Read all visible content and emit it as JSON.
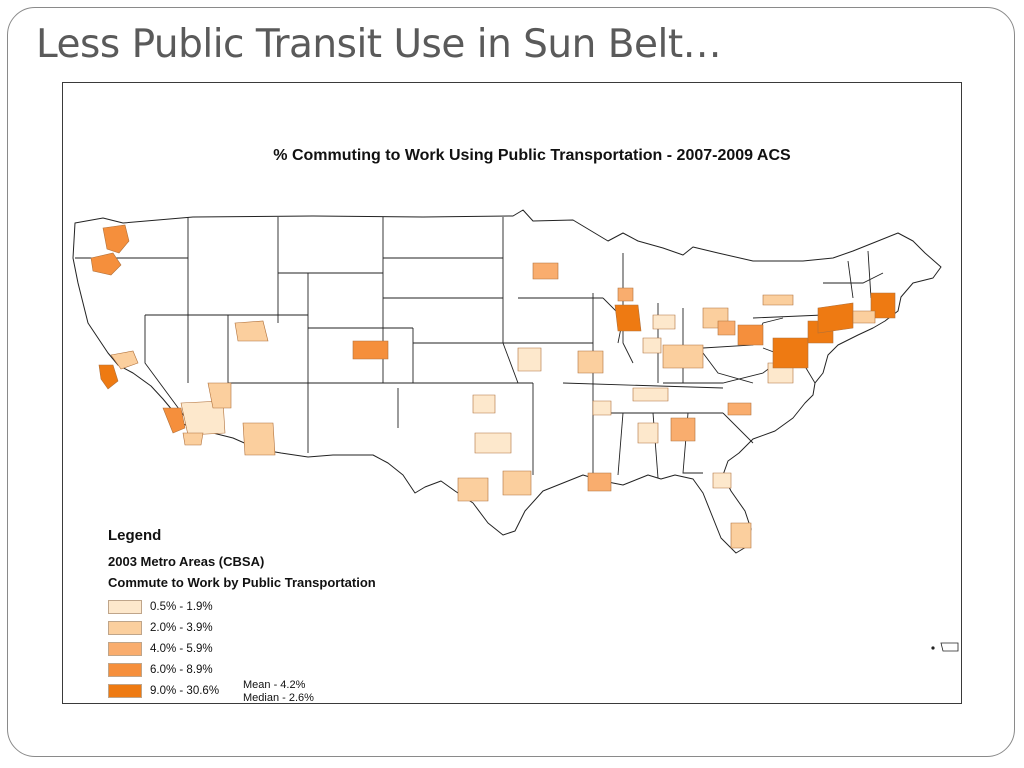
{
  "slide": {
    "title": "Less Public Transit Use in Sun Belt…"
  },
  "map": {
    "title": "% Commuting to Work Using Public Transportation - 2007-2009 ACS",
    "legend": {
      "heading": "Legend",
      "layer": "2003 Metro Areas (CBSA)",
      "field": "Commute to Work by Public Transportation",
      "classes": [
        {
          "label": "0.5% - 1.9%",
          "color": "#fde8cc"
        },
        {
          "label": "2.0% - 3.9%",
          "color": "#fbcf9e"
        },
        {
          "label": "4.0% - 5.9%",
          "color": "#f9ad6e"
        },
        {
          "label": "6.0% - 8.9%",
          "color": "#f58f3c"
        },
        {
          "label": "9.0% - 30.6%",
          "color": "#ee7a12"
        }
      ],
      "mean": "Mean - 4.2%",
      "median": "Median - 2.6%"
    },
    "colors": {
      "state_fill": "#ffffff",
      "state_border": "#222222"
    }
  }
}
